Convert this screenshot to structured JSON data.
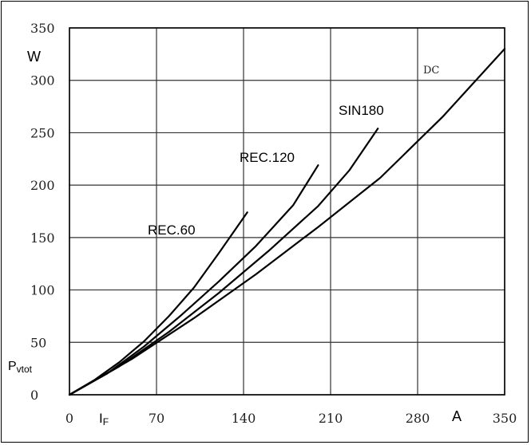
{
  "chart_data": {
    "type": "line",
    "xlim": [
      0,
      350
    ],
    "ylim": [
      0,
      350
    ],
    "x_ticks": [
      "0",
      "70",
      "140",
      "210",
      "280",
      "350"
    ],
    "y_ticks": [
      "0",
      "50",
      "100",
      "150",
      "200",
      "250",
      "300",
      "350"
    ],
    "x_unit": "A",
    "x_symbol": "IF",
    "y_unit": "W",
    "y_symbol": "Pvtot",
    "grid": true,
    "series": [
      {
        "name": "REC.60",
        "color": "#000000",
        "x": [
          0,
          20,
          40,
          60,
          80,
          100,
          120,
          143
        ],
        "y": [
          0,
          14,
          31,
          51,
          75,
          102,
          135,
          174
        ]
      },
      {
        "name": "REC.120",
        "color": "#000000",
        "x": [
          0,
          30,
          60,
          90,
          120,
          150,
          180,
          200
        ],
        "y": [
          0,
          20,
          46,
          76,
          108,
          142,
          181,
          219
        ]
      },
      {
        "name": "SIN180",
        "color": "#000000",
        "x": [
          0,
          40,
          80,
          120,
          160,
          200,
          225,
          248
        ],
        "y": [
          0,
          27,
          60,
          97,
          137,
          180,
          214,
          254
        ]
      },
      {
        "name": "DC",
        "color": "#000000",
        "x": [
          0,
          50,
          100,
          150,
          200,
          250,
          300,
          350
        ],
        "y": [
          0,
          34,
          73,
          115,
          160,
          207,
          265,
          330
        ]
      }
    ]
  }
}
